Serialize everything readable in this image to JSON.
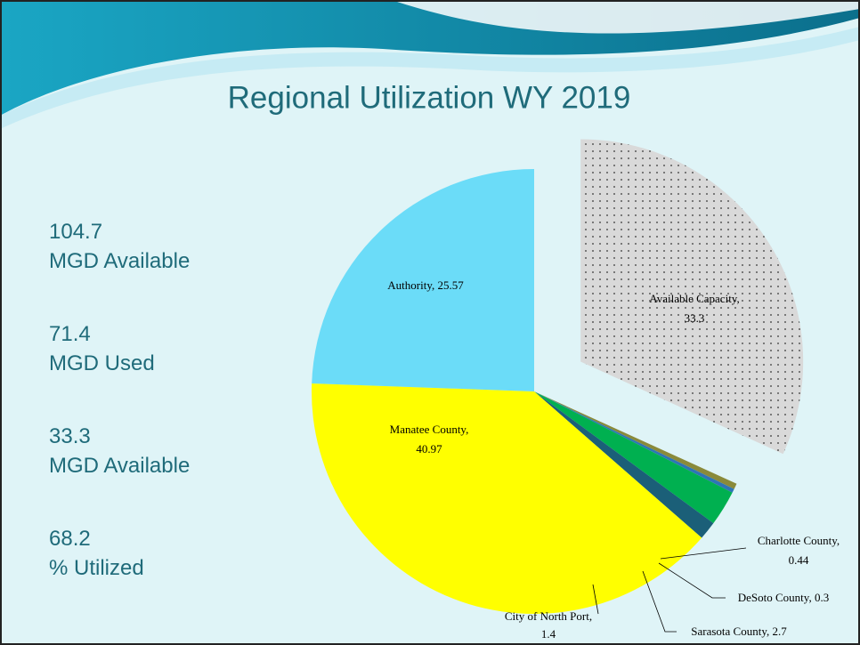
{
  "stats": [
    "104.7 MGD Available",
    "71.4 MGD Used",
    "33.3 MGD Available",
    "68.2 % Utilized"
  ],
  "chart_data": {
    "type": "pie",
    "title": "Regional Utilization WY 2019",
    "values": [
      33.3,
      0.44,
      0.3,
      2.7,
      1.4,
      40.97,
      25.57
    ],
    "value_labels": [
      "Available Capacity, 33.3",
      "Charlotte County, 0.44",
      "DeSoto County, 0.3",
      "Sarasota County, 2.7",
      "City of North Port, 1.4",
      "Manatee County, 40.97",
      "Authority, 25.57"
    ],
    "colors": [
      "#d9d9d9",
      "#8a8a3a",
      "#2e75b6",
      "#00b050",
      "#1b5f78",
      "#ffff00",
      "#6bdcf8"
    ]
  }
}
